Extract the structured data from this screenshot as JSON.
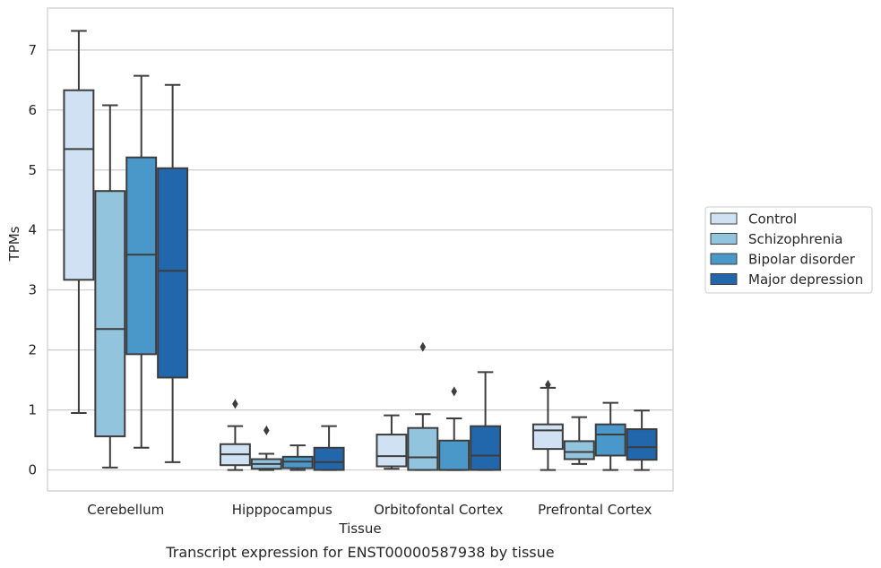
{
  "chart_data": {
    "type": "box",
    "caption": "Transcript expression for ENST00000587938 by tissue",
    "xlabel": "Tissue",
    "ylabel": "TPMs",
    "ylim": [
      -0.35,
      7.7
    ],
    "yticks": [
      0,
      1,
      2,
      3,
      4,
      5,
      6,
      7
    ],
    "grid": true,
    "legend_position": "right",
    "categories": [
      "Cerebellum",
      "Hipppocampus",
      "Orbitofontal Cortex",
      "Prefrontal Cortex"
    ],
    "series": [
      {
        "name": "Control",
        "color": "#cfe1f2",
        "boxes": [
          {
            "whisker_low": 0.95,
            "q1": 3.17,
            "median": 5.35,
            "q3": 6.33,
            "whisker_high": 7.32,
            "outliers": []
          },
          {
            "whisker_low": 0.0,
            "q1": 0.08,
            "median": 0.26,
            "q3": 0.43,
            "whisker_high": 0.73,
            "outliers": [
              1.1
            ]
          },
          {
            "whisker_low": 0.02,
            "q1": 0.06,
            "median": 0.23,
            "q3": 0.59,
            "whisker_high": 0.91,
            "outliers": []
          },
          {
            "whisker_low": 0.0,
            "q1": 0.35,
            "median": 0.66,
            "q3": 0.76,
            "whisker_high": 1.37,
            "outliers": [
              1.42
            ]
          }
        ]
      },
      {
        "name": "Schizophrenia",
        "color": "#93c4de",
        "boxes": [
          {
            "whisker_low": 0.04,
            "q1": 0.56,
            "median": 2.35,
            "q3": 4.65,
            "whisker_high": 6.08,
            "outliers": []
          },
          {
            "whisker_low": 0.0,
            "q1": 0.02,
            "median": 0.1,
            "q3": 0.18,
            "whisker_high": 0.27,
            "outliers": [
              0.66
            ]
          },
          {
            "whisker_low": 0.0,
            "q1": 0.0,
            "median": 0.21,
            "q3": 0.7,
            "whisker_high": 0.93,
            "outliers": [
              2.05
            ]
          },
          {
            "whisker_low": 0.1,
            "q1": 0.18,
            "median": 0.3,
            "q3": 0.48,
            "whisker_high": 0.88,
            "outliers": []
          }
        ]
      },
      {
        "name": "Bipolar disorder",
        "color": "#4a98c9",
        "boxes": [
          {
            "whisker_low": 0.37,
            "q1": 1.93,
            "median": 3.59,
            "q3": 5.21,
            "whisker_high": 6.57,
            "outliers": []
          },
          {
            "whisker_low": 0.0,
            "q1": 0.03,
            "median": 0.14,
            "q3": 0.22,
            "whisker_high": 0.41,
            "outliers": []
          },
          {
            "whisker_low": 0.0,
            "q1": 0.0,
            "median": 0.0,
            "q3": 0.49,
            "whisker_high": 0.86,
            "outliers": [
              1.31
            ]
          },
          {
            "whisker_low": 0.0,
            "q1": 0.24,
            "median": 0.59,
            "q3": 0.76,
            "whisker_high": 1.12,
            "outliers": []
          }
        ]
      },
      {
        "name": "Major depression",
        "color": "#2266ac",
        "boxes": [
          {
            "whisker_low": 0.13,
            "q1": 1.54,
            "median": 3.32,
            "q3": 5.03,
            "whisker_high": 6.42,
            "outliers": []
          },
          {
            "whisker_low": 0.0,
            "q1": 0.0,
            "median": 0.13,
            "q3": 0.37,
            "whisker_high": 0.73,
            "outliers": []
          },
          {
            "whisker_low": 0.0,
            "q1": 0.0,
            "median": 0.24,
            "q3": 0.73,
            "whisker_high": 1.63,
            "outliers": []
          },
          {
            "whisker_low": 0.0,
            "q1": 0.17,
            "median": 0.38,
            "q3": 0.68,
            "whisker_high": 0.99,
            "outliers": []
          }
        ]
      }
    ]
  }
}
